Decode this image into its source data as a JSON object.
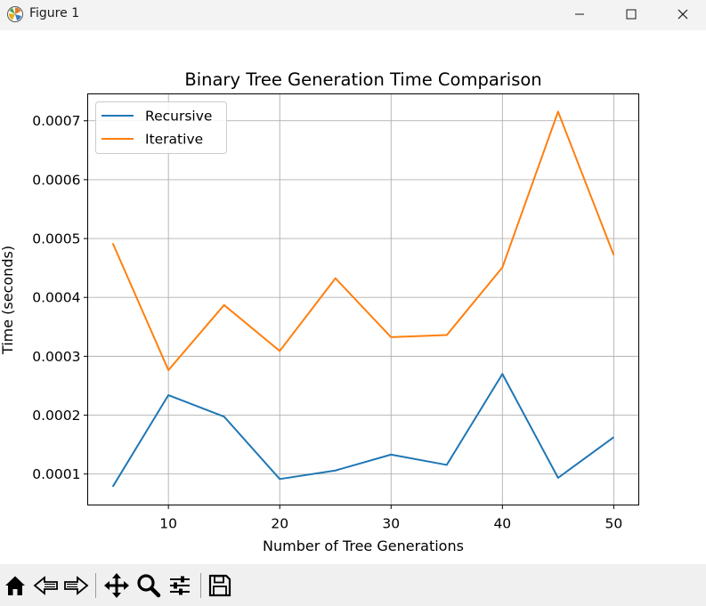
{
  "window": {
    "title": "Figure 1",
    "app_icon": "matplotlib-icon",
    "controls": [
      "minimize-icon",
      "maximize-icon",
      "close-icon"
    ]
  },
  "toolbar": {
    "buttons": [
      "home-icon",
      "back-icon",
      "forward-icon",
      "pan-icon",
      "zoom-icon",
      "configure-subplots-icon",
      "save-icon"
    ]
  },
  "chart_data": {
    "type": "line",
    "title": "Binary Tree Generation Time Comparison",
    "xlabel": "Number of Tree Generations",
    "ylabel": "Time (seconds)",
    "x": [
      5,
      10,
      15,
      20,
      25,
      30,
      35,
      40,
      45,
      50
    ],
    "xticks": [
      10,
      20,
      30,
      40,
      50
    ],
    "yticks": [
      0.0001,
      0.0002,
      0.0003,
      0.0004,
      0.0005,
      0.0006,
      0.0007
    ],
    "ytick_labels": [
      "0.0001",
      "0.0002",
      "0.0003",
      "0.0004",
      "0.0005",
      "0.0006",
      "0.0007"
    ],
    "xlim": [
      2.75,
      52.25
    ],
    "ylim": [
      4.74e-05,
      0.0007457
    ],
    "grid": true,
    "legend_position": "upper-left",
    "series": [
      {
        "name": "Recursive",
        "color": "#1f77b4",
        "values": [
          7.85e-05,
          0.000234,
          0.0001975,
          9.15e-05,
          0.000106,
          0.000133,
          0.0001155,
          0.00027,
          9.35e-05,
          0.0001625
        ]
      },
      {
        "name": "Iterative",
        "color": "#ff7f0e",
        "values": [
          0.000492,
          0.0002765,
          0.000387,
          0.000309,
          0.0004325,
          0.0003325,
          0.000336,
          0.000451,
          0.0007155,
          0.000472
        ]
      }
    ]
  }
}
